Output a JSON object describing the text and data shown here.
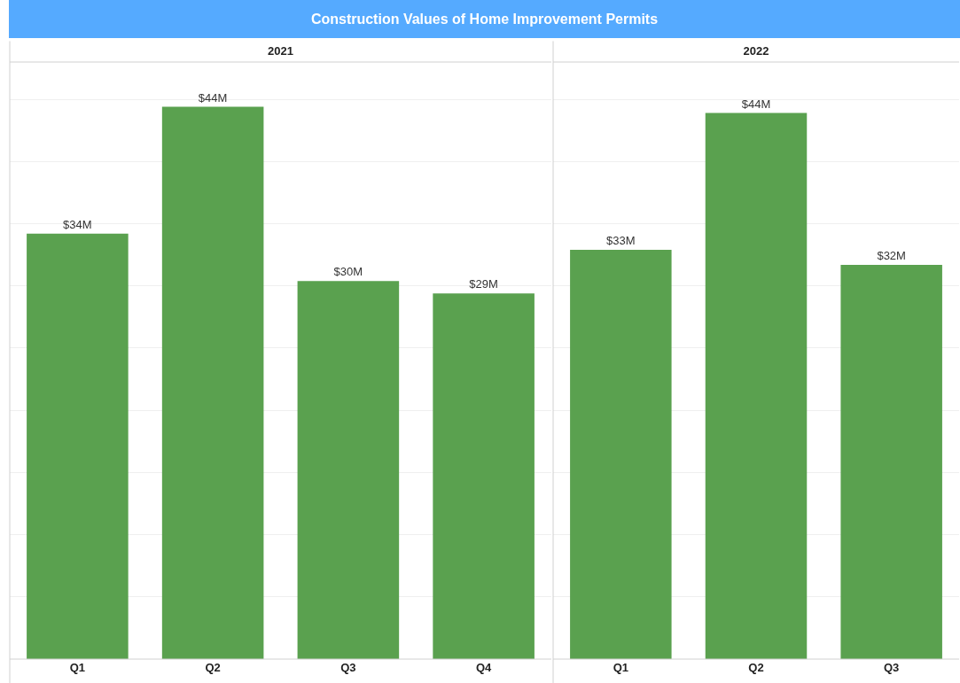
{
  "chart_data": [
    {
      "type": "bar",
      "title": "Construction Values of Home Improvement Permits",
      "subtitle": "2021",
      "categories": [
        "Q1",
        "Q2",
        "Q3",
        "Q4"
      ],
      "values": [
        34.2,
        44.4,
        30.4,
        29.4
      ],
      "value_labels": [
        "$34M",
        "$44M",
        "$30M",
        "$29M"
      ],
      "color": "#5aa14f",
      "ylim": [
        0,
        48
      ],
      "yticks": [
        {
          "value": 0,
          "label": null
        },
        {
          "value": 5,
          "label": null
        },
        {
          "value": 10,
          "label": null
        },
        {
          "value": 15,
          "label": null
        },
        {
          "value": 20,
          "label": null
        },
        {
          "value": 25,
          "label": null
        },
        {
          "value": 30,
          "label": null
        },
        {
          "value": 35,
          "label": null
        },
        {
          "value": 40,
          "label": null
        },
        {
          "value": 45,
          "label": null
        }
      ],
      "grid": "y",
      "tick_labels": "x"
    },
    {
      "type": "bar",
      "subtitle": "2022",
      "categories": [
        "Q1",
        "Q2",
        "Q3"
      ],
      "values": [
        32.9,
        43.9,
        31.7
      ],
      "value_labels": [
        "$33M",
        "$44M",
        "$32M"
      ],
      "color": "#5aa14f",
      "ylim": [
        0,
        48
      ],
      "yticks": [
        {
          "value": 0,
          "label": null
        },
        {
          "value": 5,
          "label": null
        },
        {
          "value": 10,
          "label": null
        },
        {
          "value": 15,
          "label": null
        },
        {
          "value": 20,
          "label": null
        },
        {
          "value": 25,
          "label": null
        },
        {
          "value": 30,
          "label": null
        },
        {
          "value": 35,
          "label": null
        },
        {
          "value": 40,
          "label": null
        },
        {
          "value": 45,
          "label": null
        }
      ],
      "grid": "y",
      "tick_labels": "x"
    }
  ]
}
